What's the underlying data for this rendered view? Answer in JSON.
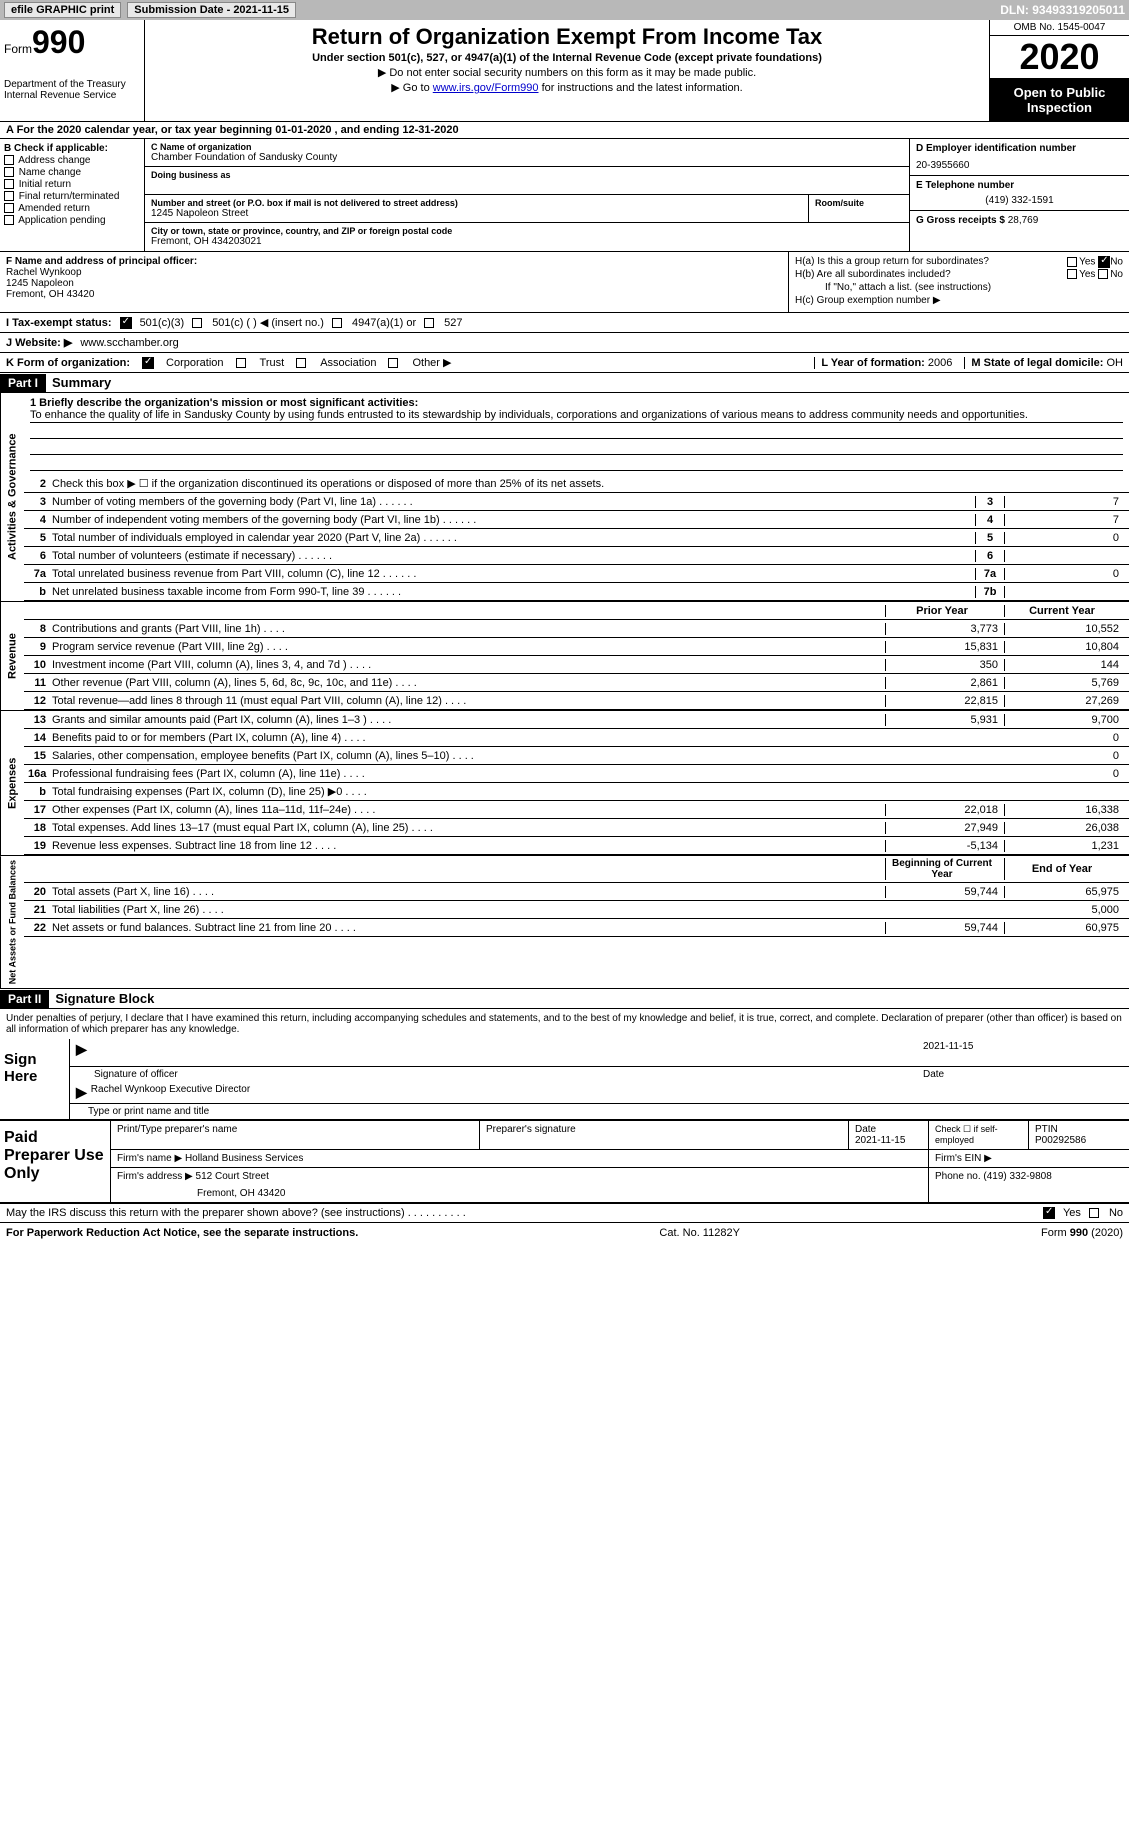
{
  "topbar": {
    "efile": "efile GRAPHIC print",
    "submission": "Submission Date - 2021-11-15",
    "dln": "DLN: 93493319205011"
  },
  "header": {
    "form_label": "Form",
    "form_num": "990",
    "dept": "Department of the Treasury\nInternal Revenue Service",
    "title": "Return of Organization Exempt From Income Tax",
    "subtitle": "Under section 501(c), 527, or 4947(a)(1) of the Internal Revenue Code (except private foundations)",
    "note1": "▶ Do not enter social security numbers on this form as it may be made public.",
    "note2_pre": "▶ Go to ",
    "note2_link": "www.irs.gov/Form990",
    "note2_post": " for instructions and the latest information.",
    "omb": "OMB No. 1545-0047",
    "year": "2020",
    "open": "Open to Public Inspection"
  },
  "rowA": "A For the 2020 calendar year, or tax year beginning 01-01-2020   , and ending 12-31-2020",
  "B": {
    "label": "B Check if applicable:",
    "items": [
      "Address change",
      "Name change",
      "Initial return",
      "Final return/terminated",
      "Amended return",
      "Application pending"
    ]
  },
  "C": {
    "name_lbl": "C Name of organization",
    "name": "Chamber Foundation of Sandusky County",
    "dba_lbl": "Doing business as",
    "dba": "",
    "addr_lbl": "Number and street (or P.O. box if mail is not delivered to street address)",
    "addr": "1245 Napoleon Street",
    "room_lbl": "Room/suite",
    "city_lbl": "City or town, state or province, country, and ZIP or foreign postal code",
    "city": "Fremont, OH  434203021"
  },
  "D": {
    "lbl": "D Employer identification number",
    "val": "20-3955660"
  },
  "E": {
    "lbl": "E Telephone number",
    "val": "(419) 332-1591"
  },
  "G": {
    "lbl": "G Gross receipts $",
    "val": "28,769"
  },
  "F": {
    "lbl": "F  Name and address of principal officer:",
    "name": "Rachel Wynkoop",
    "addr1": "1245 Napoleon",
    "addr2": "Fremont, OH  43420"
  },
  "H": {
    "a": "H(a)  Is this a group return for subordinates?",
    "b": "H(b)  Are all subordinates included?",
    "b_note": "If \"No,\" attach a list. (see instructions)",
    "c": "H(c)  Group exemption number ▶",
    "yes": "Yes",
    "no": "No"
  },
  "I": {
    "lbl": "I   Tax-exempt status:",
    "opts": [
      "501(c)(3)",
      "501(c) (  ) ◀ (insert no.)",
      "4947(a)(1) or",
      "527"
    ]
  },
  "J": {
    "lbl": "J   Website: ▶",
    "val": "www.scchamber.org"
  },
  "K": {
    "lbl": "K Form of organization:",
    "opts": [
      "Corporation",
      "Trust",
      "Association",
      "Other ▶"
    ]
  },
  "L": {
    "lbl": "L Year of formation:",
    "val": "2006"
  },
  "M": {
    "lbl": "M State of legal domicile:",
    "val": "OH"
  },
  "partI": {
    "hdr": "Part I",
    "title": "Summary",
    "q1_lbl": "1  Briefly describe the organization's mission or most significant activities:",
    "q1_txt": "To enhance the quality of life in Sandusky County by using funds entrusted to its stewardship by individuals, corporations and organizations of various means to address community needs and opportunities.",
    "q2": "Check this box ▶ ☐  if the organization discontinued its operations or disposed of more than 25% of its net assets.",
    "tabs": {
      "gov": "Activities & Governance",
      "rev": "Revenue",
      "exp": "Expenses",
      "net": "Net Assets or Fund Balances"
    },
    "gov_lines": [
      {
        "n": "3",
        "t": "Number of voting members of the governing body (Part VI, line 1a)",
        "c": "3",
        "v": "7"
      },
      {
        "n": "4",
        "t": "Number of independent voting members of the governing body (Part VI, line 1b)",
        "c": "4",
        "v": "7"
      },
      {
        "n": "5",
        "t": "Total number of individuals employed in calendar year 2020 (Part V, line 2a)",
        "c": "5",
        "v": "0"
      },
      {
        "n": "6",
        "t": "Total number of volunteers (estimate if necessary)",
        "c": "6",
        "v": ""
      },
      {
        "n": "7a",
        "t": "Total unrelated business revenue from Part VIII, column (C), line 12",
        "c": "7a",
        "v": "0"
      },
      {
        "n": "b",
        "t": "Net unrelated business taxable income from Form 990-T, line 39",
        "c": "7b",
        "v": ""
      }
    ],
    "col_hdr": {
      "prior": "Prior Year",
      "current": "Current Year"
    },
    "rev_lines": [
      {
        "n": "8",
        "t": "Contributions and grants (Part VIII, line 1h)",
        "p": "3,773",
        "c": "10,552"
      },
      {
        "n": "9",
        "t": "Program service revenue (Part VIII, line 2g)",
        "p": "15,831",
        "c": "10,804"
      },
      {
        "n": "10",
        "t": "Investment income (Part VIII, column (A), lines 3, 4, and 7d )",
        "p": "350",
        "c": "144"
      },
      {
        "n": "11",
        "t": "Other revenue (Part VIII, column (A), lines 5, 6d, 8c, 9c, 10c, and 11e)",
        "p": "2,861",
        "c": "5,769"
      },
      {
        "n": "12",
        "t": "Total revenue—add lines 8 through 11 (must equal Part VIII, column (A), line 12)",
        "p": "22,815",
        "c": "27,269"
      }
    ],
    "exp_lines": [
      {
        "n": "13",
        "t": "Grants and similar amounts paid (Part IX, column (A), lines 1–3 )",
        "p": "5,931",
        "c": "9,700"
      },
      {
        "n": "14",
        "t": "Benefits paid to or for members (Part IX, column (A), line 4)",
        "p": "",
        "c": "0"
      },
      {
        "n": "15",
        "t": "Salaries, other compensation, employee benefits (Part IX, column (A), lines 5–10)",
        "p": "",
        "c": "0"
      },
      {
        "n": "16a",
        "t": "Professional fundraising fees (Part IX, column (A), line 11e)",
        "p": "",
        "c": "0"
      },
      {
        "n": "b",
        "t": "Total fundraising expenses (Part IX, column (D), line 25) ▶0",
        "p": "shade",
        "c": "shade"
      },
      {
        "n": "17",
        "t": "Other expenses (Part IX, column (A), lines 11a–11d, 11f–24e)",
        "p": "22,018",
        "c": "16,338"
      },
      {
        "n": "18",
        "t": "Total expenses. Add lines 13–17 (must equal Part IX, column (A), line 25)",
        "p": "27,949",
        "c": "26,038"
      },
      {
        "n": "19",
        "t": "Revenue less expenses. Subtract line 18 from line 12",
        "p": "-5,134",
        "c": "1,231"
      }
    ],
    "net_hdr": {
      "beg": "Beginning of Current Year",
      "end": "End of Year"
    },
    "net_lines": [
      {
        "n": "20",
        "t": "Total assets (Part X, line 16)",
        "p": "59,744",
        "c": "65,975"
      },
      {
        "n": "21",
        "t": "Total liabilities (Part X, line 26)",
        "p": "",
        "c": "5,000"
      },
      {
        "n": "22",
        "t": "Net assets or fund balances. Subtract line 21 from line 20",
        "p": "59,744",
        "c": "60,975"
      }
    ]
  },
  "partII": {
    "hdr": "Part II",
    "title": "Signature Block",
    "decl": "Under penalties of perjury, I declare that I have examined this return, including accompanying schedules and statements, and to the best of my knowledge and belief, it is true, correct, and complete. Declaration of preparer (other than officer) is based on all information of which preparer has any knowledge.",
    "sign_here": "Sign Here",
    "sig_officer": "Signature of officer",
    "sig_date": "2021-11-15",
    "date_lbl": "Date",
    "officer_name": "Rachel Wynkoop  Executive Director",
    "officer_lbl": "Type or print name and title",
    "paid": "Paid Preparer Use Only",
    "prep_name_lbl": "Print/Type preparer's name",
    "prep_sig_lbl": "Preparer's signature",
    "prep_date_lbl": "Date",
    "prep_date": "2021-11-15",
    "self_emp": "Check ☐ if self-employed",
    "ptin_lbl": "PTIN",
    "ptin": "P00292586",
    "firm_name_lbl": "Firm's name    ▶",
    "firm_name": "Holland Business Services",
    "firm_ein_lbl": "Firm's EIN ▶",
    "firm_addr_lbl": "Firm's address ▶",
    "firm_addr1": "512 Court Street",
    "firm_addr2": "Fremont, OH  43420",
    "phone_lbl": "Phone no.",
    "phone": "(419) 332-9808",
    "discuss": "May the IRS discuss this return with the preparer shown above? (see instructions)",
    "yes": "Yes",
    "no": "No"
  },
  "footer": {
    "left": "For Paperwork Reduction Act Notice, see the separate instructions.",
    "mid": "Cat. No. 11282Y",
    "right": "Form 990 (2020)"
  }
}
